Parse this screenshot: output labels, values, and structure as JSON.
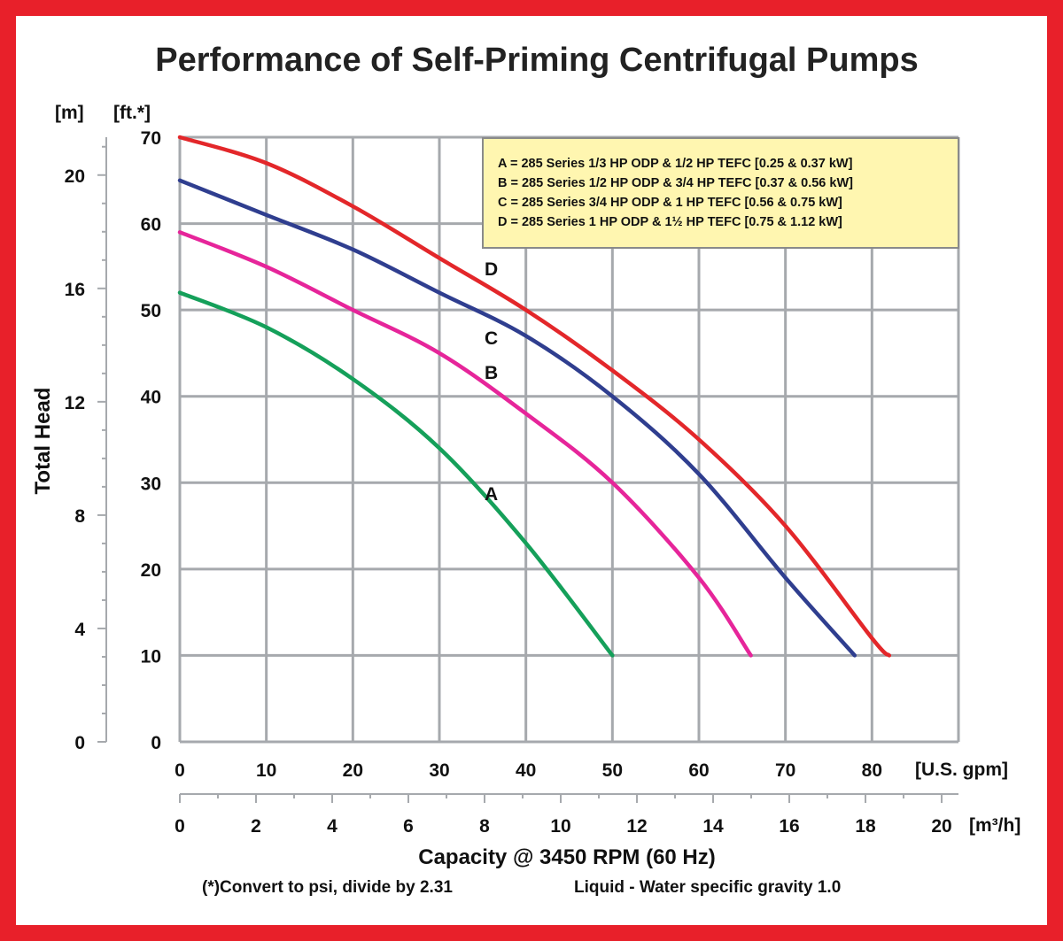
{
  "colors": {
    "border": "#e8202a",
    "grid": "#a6a9ad",
    "legend_bg": "#fff6b0",
    "legend_border": "#8a8a8a",
    "series_A": "#15a05a",
    "series_B": "#e6259a",
    "series_C": "#2f3e8f",
    "series_D": "#e3272a"
  },
  "chart_data": {
    "type": "line",
    "title": "Performance of Self-Priming Centrifugal Pumps",
    "ylabel": "Total Head",
    "y_unit_ft": "[ft.*]",
    "y_unit_m": "[m]",
    "xlabel": "Capacity @ 3450 RPM (60 Hz)",
    "x_unit_gpm": "[U.S. gpm]",
    "x_unit_m3h": "[m³/h]",
    "footnote_left": "(*)Convert to psi, divide by 2.31",
    "footnote_right": "Liquid - Water specific gravity 1.0",
    "xlim": [
      0,
      90
    ],
    "ylim": [
      0,
      70
    ],
    "x_ticks_gpm": [
      "0",
      "10",
      "20",
      "30",
      "40",
      "50",
      "60",
      "70",
      "80"
    ],
    "y_ticks_ft": [
      "0",
      "10",
      "20",
      "30",
      "40",
      "50",
      "60",
      "70"
    ],
    "y_ticks_m": [
      "0",
      "4",
      "8",
      "12",
      "16",
      "20"
    ],
    "x_ticks_m3h": [
      "0",
      "2",
      "4",
      "6",
      "8",
      "10",
      "12",
      "14",
      "16",
      "18",
      "20"
    ],
    "grid": true,
    "legend_position": "top-right",
    "legend": [
      "A = 285 Series 1/3 HP ODP & 1/2 HP TEFC [0.25 & 0.37 kW]",
      "B = 285 Series 1/2 HP ODP & 3/4 HP TEFC [0.37 & 0.56 kW]",
      "C = 285 Series 3/4 HP ODP & 1 HP TEFC [0.56 & 0.75 kW]",
      "D = 285 Series 1 HP ODP & 1½ HP TEFC [0.75 & 1.12 kW]"
    ],
    "series": [
      {
        "name": "A",
        "label": "A",
        "x": [
          0,
          10,
          20,
          30,
          40,
          50
        ],
        "y": [
          52,
          48,
          42,
          34,
          23,
          10
        ]
      },
      {
        "name": "B",
        "label": "B",
        "x": [
          0,
          10,
          20,
          30,
          40,
          50,
          60,
          66
        ],
        "y": [
          59,
          55,
          50,
          45,
          38,
          30,
          19,
          10
        ]
      },
      {
        "name": "C",
        "label": "C",
        "x": [
          0,
          10,
          20,
          30,
          40,
          50,
          60,
          70,
          78
        ],
        "y": [
          65,
          61,
          57,
          52,
          47,
          40,
          31,
          19,
          10
        ]
      },
      {
        "name": "D",
        "label": "D",
        "x": [
          0,
          10,
          20,
          30,
          40,
          50,
          60,
          70,
          80,
          82
        ],
        "y": [
          70,
          67,
          62,
          56,
          50,
          43,
          35,
          25,
          12,
          10
        ]
      }
    ],
    "curve_labels": [
      "D",
      "C",
      "B",
      "A"
    ]
  }
}
